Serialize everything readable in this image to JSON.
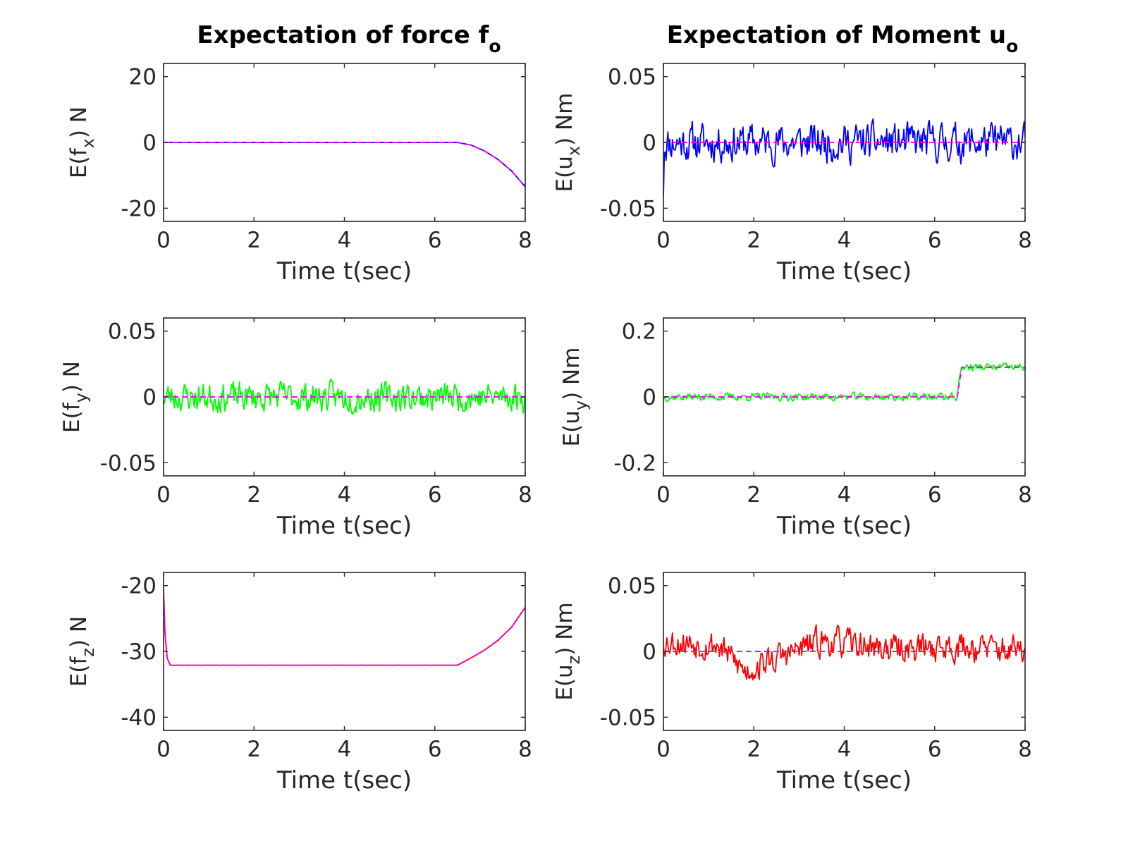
{
  "columns": [
    {
      "title": "Expectation of force f",
      "title_sub": "o"
    },
    {
      "title": "Expectation of Moment u",
      "title_sub": "o"
    }
  ],
  "colors": {
    "blue": "#0000ff",
    "green": "#00ff00",
    "red": "#ff0000",
    "reference": "#ff00ff",
    "axis": "#262626"
  },
  "chart_data": [
    {
      "type": "line",
      "ylabel_pre": "E(f",
      "ylabel_sub": "x",
      "ylabel_post": ") N",
      "xlabel": "Time t(sec)",
      "xlim": [
        0,
        8
      ],
      "ylim": [
        -24,
        24
      ],
      "xticks": [
        0,
        2,
        4,
        6,
        8
      ],
      "xtick_labels": [
        "0",
        "2",
        "4",
        "6",
        "8"
      ],
      "yticks": [
        -20,
        0,
        20
      ],
      "ytick_labels": [
        "-20",
        "0",
        "20"
      ],
      "series": [
        {
          "color": "#0000ff",
          "style": "solid",
          "x": [
            0,
            6.5,
            6.8,
            7.1,
            7.4,
            7.7,
            8.0
          ],
          "y": [
            0,
            0,
            -0.8,
            -2.6,
            -5.2,
            -8.7,
            -13.5
          ]
        },
        {
          "color": "#ff00ff",
          "style": "dashed",
          "x": [
            0,
            6.5,
            6.8,
            7.1,
            7.4,
            7.7,
            8.0
          ],
          "y": [
            0,
            0,
            -0.8,
            -2.6,
            -5.2,
            -8.7,
            -13.5
          ]
        }
      ]
    },
    {
      "type": "line",
      "ylabel_pre": "E(u",
      "ylabel_sub": "x",
      "ylabel_post": ") Nm",
      "xlabel": "Time t(sec)",
      "xlim": [
        0,
        8
      ],
      "ylim": [
        -0.06,
        0.06
      ],
      "xticks": [
        0,
        2,
        4,
        6,
        8
      ],
      "xtick_labels": [
        "0",
        "2",
        "4",
        "6",
        "8"
      ],
      "yticks": [
        -0.05,
        0,
        0.05
      ],
      "ytick_labels": [
        "-0.05",
        "0",
        "0.05"
      ],
      "series": [
        {
          "color": "#0000ff",
          "style": "noise",
          "amplitude": 0.022,
          "seed": 11,
          "start_y": -0.042,
          "x": [
            0,
            8
          ],
          "y": [
            0,
            0
          ]
        },
        {
          "color": "#ff00ff",
          "style": "dashed",
          "x": [
            0,
            8
          ],
          "y": [
            0,
            0
          ]
        }
      ]
    },
    {
      "type": "line",
      "ylabel_pre": "E(f",
      "ylabel_sub": "y",
      "ylabel_post": ") N",
      "xlabel": "Time t(sec)",
      "xlim": [
        0,
        8
      ],
      "ylim": [
        -0.06,
        0.06
      ],
      "xticks": [
        0,
        2,
        4,
        6,
        8
      ],
      "xtick_labels": [
        "0",
        "2",
        "4",
        "6",
        "8"
      ],
      "yticks": [
        -0.05,
        0,
        0.05
      ],
      "ytick_labels": [
        "-0.05",
        "0",
        "0.05"
      ],
      "series": [
        {
          "color": "#00ff00",
          "style": "noise",
          "amplitude": 0.017,
          "seed": 23,
          "x": [
            0,
            8
          ],
          "y": [
            0,
            0
          ]
        },
        {
          "color": "#ff00ff",
          "style": "dashed",
          "x": [
            0,
            8
          ],
          "y": [
            0,
            0
          ]
        }
      ]
    },
    {
      "type": "line",
      "ylabel_pre": "E(u",
      "ylabel_sub": "y",
      "ylabel_post": ") Nm",
      "xlabel": "Time t(sec)",
      "xlim": [
        0,
        8
      ],
      "ylim": [
        -0.24,
        0.24
      ],
      "xticks": [
        0,
        2,
        4,
        6,
        8
      ],
      "xtick_labels": [
        "0",
        "2",
        "4",
        "6",
        "8"
      ],
      "yticks": [
        -0.2,
        0,
        0.2
      ],
      "ytick_labels": [
        "-0.2",
        "0",
        "0.2"
      ],
      "series": [
        {
          "color": "#00ff00",
          "style": "noise",
          "amplitude": 0.018,
          "seed": 37,
          "x": [
            0,
            6.5,
            6.5,
            6.6,
            8.0
          ],
          "y": [
            0,
            0,
            0.02,
            0.09,
            0.09
          ]
        },
        {
          "color": "#ff00ff",
          "style": "dashed",
          "x": [
            0,
            6.5,
            6.6,
            8.0
          ],
          "y": [
            0,
            0,
            0.09,
            0.09
          ]
        }
      ]
    },
    {
      "type": "line",
      "ylabel_pre": "E(f",
      "ylabel_sub": "z",
      "ylabel_post": ") N",
      "xlabel": "Time t(sec)",
      "xlim": [
        0,
        8
      ],
      "ylim": [
        -42,
        -18
      ],
      "xticks": [
        0,
        2,
        4,
        6,
        8
      ],
      "xtick_labels": [
        "0",
        "2",
        "4",
        "6",
        "8"
      ],
      "yticks": [
        -40,
        -30,
        -20
      ],
      "ytick_labels": [
        "-40",
        "-30",
        "-20"
      ],
      "series": [
        {
          "color": "#ff0000",
          "style": "solid",
          "x": [
            0,
            0.03,
            0.08,
            0.15,
            6.5,
            6.8,
            7.1,
            7.4,
            7.7,
            8.0
          ],
          "y": [
            -20.5,
            -27,
            -31,
            -32.1,
            -32.1,
            -31,
            -29.8,
            -28.3,
            -26.3,
            -23.3
          ]
        },
        {
          "color": "#ff00ff",
          "style": "dashed",
          "x": [
            0,
            0.03,
            0.08,
            0.15,
            6.5,
            6.8,
            7.1,
            7.4,
            7.7,
            8.0
          ],
          "y": [
            -20.5,
            -27,
            -31,
            -32.1,
            -32.1,
            -31,
            -29.8,
            -28.3,
            -26.3,
            -23.3
          ]
        }
      ]
    },
    {
      "type": "line",
      "ylabel_pre": "E(u",
      "ylabel_sub": "z",
      "ylabel_post": ") Nm",
      "xlabel": "Time t(sec)",
      "xlim": [
        0,
        8
      ],
      "ylim": [
        -0.06,
        0.06
      ],
      "xticks": [
        0,
        2,
        4,
        6,
        8
      ],
      "xtick_labels": [
        "0",
        "2",
        "4",
        "6",
        "8"
      ],
      "yticks": [
        -0.05,
        0,
        0.05
      ],
      "ytick_labels": [
        "-0.05",
        "0",
        "0.05"
      ],
      "series": [
        {
          "color": "#ff0000",
          "style": "noise",
          "amplitude": 0.017,
          "seed": 53,
          "x": [
            0,
            1.2,
            1.8,
            2.3,
            3.5,
            5.0,
            6.5,
            8.0
          ],
          "y": [
            0.008,
            0.005,
            -0.015,
            -0.008,
            0.008,
            0.002,
            0.004,
            0.0
          ]
        },
        {
          "color": "#ff00ff",
          "style": "dashed",
          "x": [
            0,
            8
          ],
          "y": [
            0,
            0
          ]
        }
      ]
    }
  ]
}
